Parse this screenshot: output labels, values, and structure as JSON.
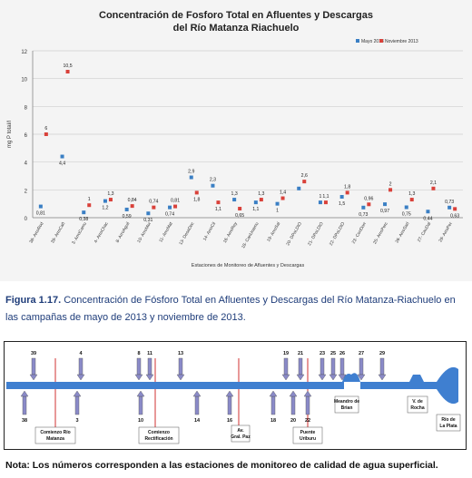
{
  "chart_data": {
    "type": "scatter",
    "title_line1": "Concentración de Fosforo Total en Afluentes y Descargas",
    "title_line2": "del Río Matanza Riachuelo",
    "xlabel": "Estaciones de Monitoreo de Afluentes y Descargas",
    "ylabel": "mg P total/l",
    "ylim": [
      0,
      12
    ],
    "yticks": [
      0,
      2,
      4,
      6,
      8,
      10,
      12
    ],
    "grid": true,
    "legend_position": "top-right",
    "categories": [
      "38- ArroRod",
      "39- ArroCañ",
      "3- ArroCamu",
      "4- ArroChac",
      "8- ArroAguil",
      "10- ArroMor",
      "11- ArroMat",
      "13- DesaDec",
      "14- ArroCil",
      "16- ArroRey",
      "18- CanUnamu",
      "19- ArroSal",
      "20- DPoLDIO",
      "21- DPoLDIO",
      "22- DPoLDIO",
      "23- ConDorr",
      "25- ArroPerc",
      "26- ArroSarl",
      "27- CauDal",
      "29- ArroPer"
    ],
    "series": [
      {
        "name": "Mayo 2013",
        "color": "#3a7fc4",
        "values": [
          0.81,
          4.4,
          0.38,
          1.2,
          0.59,
          0.31,
          0.74,
          2.9,
          2.3,
          1.3,
          1.1,
          1.0,
          2.1,
          1.1,
          1.5,
          0.73,
          0.97,
          0.75,
          0.44,
          0.73
        ],
        "labels": [
          "0,81",
          "4,4",
          "0,38",
          "1,2",
          "0,59",
          "0,31",
          "0,74",
          "2,9",
          "2,3",
          "1,3",
          "1,1",
          "1",
          "",
          "1",
          "1,5",
          "0,73",
          "0,97",
          "0,75",
          "0,44",
          "0,73"
        ]
      },
      {
        "name": "Noviembre 2013",
        "color": "#d9413a",
        "values": [
          6.0,
          10.5,
          0.9,
          1.3,
          0.84,
          0.74,
          0.81,
          1.8,
          1.1,
          0.65,
          1.3,
          1.4,
          2.6,
          1.1,
          1.8,
          0.96,
          2.0,
          1.3,
          2.1,
          0.63
        ],
        "labels": [
          "6",
          "10,5",
          "1",
          "1,3",
          "0,84",
          "0,74",
          "0,81",
          "1,8",
          "1,1",
          "0,65",
          "1,3",
          "1,4",
          "2,6",
          "1,1",
          "1,8",
          "0,96",
          "2",
          "1,3",
          "2,1",
          "0,63"
        ]
      }
    ]
  },
  "caption": {
    "prefix": "Figura 1.17.",
    "text": " Concentración de Fósforo Total en Afluentes y Descargas del Río Matanza-Riachuelo en las campañas de mayo de 2013 y noviembre de 2013."
  },
  "diagram": {
    "top_stations": [
      "39",
      "4",
      "8",
      "11",
      "13",
      "19",
      "21",
      "23",
      "25",
      "26",
      "27",
      "29"
    ],
    "bottom_stations": [
      "38",
      "3",
      "10",
      "14",
      "16",
      "18",
      "20",
      "22"
    ],
    "boundaries": [
      "Comienzo Río Matanza",
      "Comienzo Rectificación",
      "Av. Gral. Paz",
      "Puente Uriburu"
    ],
    "places": [
      "Meandro de Brian",
      "V. de Rocha",
      "Río de La Plata"
    ],
    "colors": {
      "river": "#3f7fd0",
      "arrow": "#8a8ac8",
      "line": "#d03030"
    }
  },
  "note": "Nota: Los números corresponden a las estaciones de monitoreo de calidad de agua superficial."
}
